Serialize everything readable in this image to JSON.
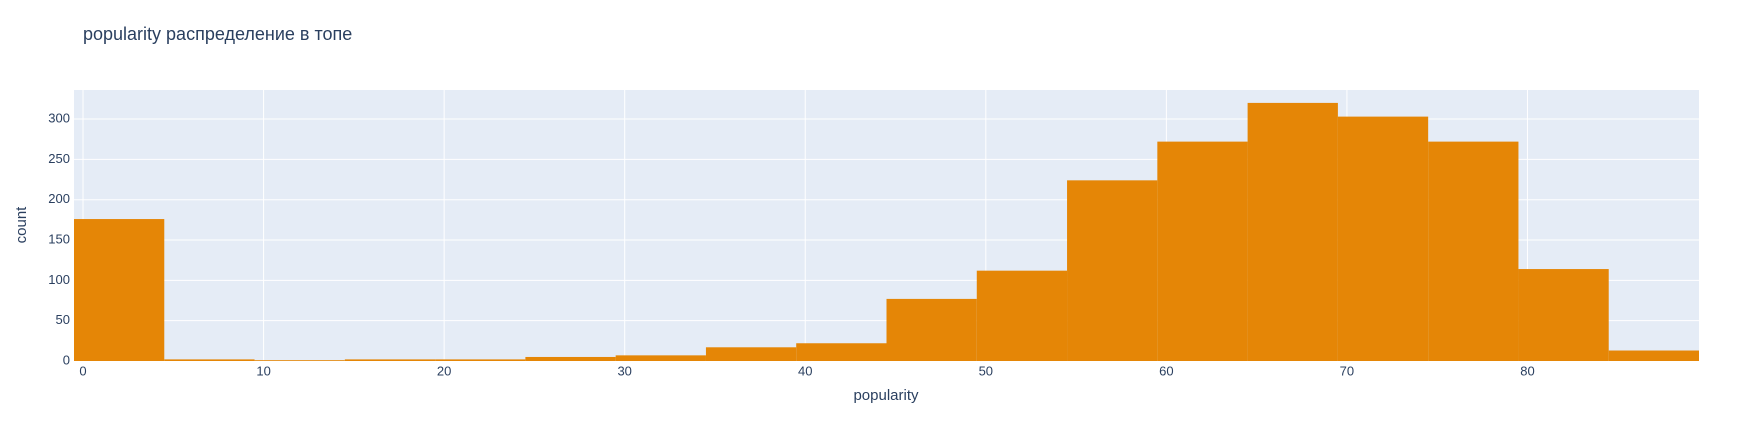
{
  "chart_data": {
    "type": "histogram",
    "title": "popularity распределение в топе",
    "x_label": "popularity",
    "y_label": "count",
    "bins": [
      -0.5,
      4.5,
      9.5,
      14.5,
      19.5,
      24.5,
      29.5,
      34.5,
      39.5,
      44.5,
      49.5,
      54.5,
      59.5,
      64.5,
      69.5,
      74.5,
      79.5,
      84.5,
      89.5
    ],
    "values": [
      176,
      2,
      1,
      2,
      2,
      5,
      7,
      17,
      22,
      77,
      112,
      224,
      272,
      320,
      303,
      272,
      114,
      13
    ],
    "color": "#e58606",
    "xlim": [
      -0.5,
      89.5
    ],
    "xticks": [
      0,
      10,
      20,
      30,
      40,
      50,
      60,
      70,
      80
    ],
    "ylim": [
      0,
      336
    ],
    "yticks": [
      0,
      50,
      100,
      150,
      200,
      250,
      300
    ],
    "grid": true
  }
}
